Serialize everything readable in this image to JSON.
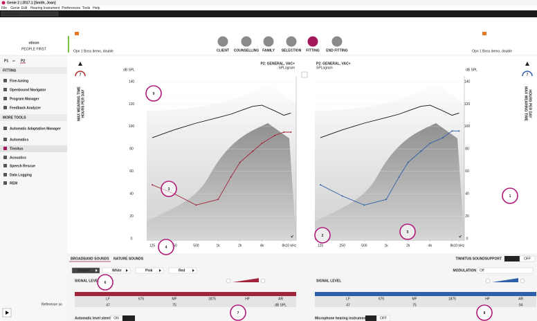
{
  "title_bar": "Genie 2 | 2017.1 [Smith, Joan]",
  "menu": [
    "File",
    "Genie",
    "Edit",
    "Hearing Instrument",
    "Preferences",
    "Tools",
    "Help"
  ],
  "toolbar": {
    "button": "Disconnect"
  },
  "logo": {
    "name": "oticon",
    "tagline": "PEOPLE FIRST"
  },
  "devices": {
    "left": "Opn 1 Boss demo, double",
    "right": "Opn 1 Boss demo, double"
  },
  "nav": {
    "items": [
      "CLIENT",
      "COUNSELLING",
      "FAMILY",
      "SELECTION",
      "FITTING",
      "END FITTING"
    ],
    "active_index": 4
  },
  "programs": [
    "P1",
    "P2"
  ],
  "sidebar": [
    {
      "title": "FITTING",
      "items": [
        {
          "label": "Fine-tuning"
        },
        {
          "label": "Openbound Navigator"
        },
        {
          "label": "Program Manager"
        },
        {
          "label": "Feedback Analyzer"
        }
      ]
    },
    {
      "title": "MORE TOOLS",
      "items": [
        {
          "label": "Automatic Adaptation Manager"
        },
        {
          "label": "Automatics"
        },
        {
          "label": "Tinnitus",
          "active": true
        },
        {
          "label": "Acoustics"
        },
        {
          "label": "Speech Rescue"
        },
        {
          "label": "Data Logging"
        },
        {
          "label": "REM"
        }
      ]
    }
  ],
  "gauges": {
    "left": 7,
    "right": 7,
    "label_1": "MAX WEARING TIME",
    "label_2": "HOURS PER DAY"
  },
  "charts": [
    {
      "program_label": "P2: GENERAL, VAC+",
      "subtitle": "SPLogram",
      "y_label": "dB SPL",
      "color": "#a0253a",
      "ylim": [
        0,
        140
      ],
      "yticks": [
        0,
        20,
        40,
        60,
        80,
        100,
        120,
        140
      ],
      "xticks": [
        {
          "value": 125,
          "label": "125"
        },
        {
          "value": 250,
          "label": "250"
        },
        {
          "value": 500,
          "label": "500"
        },
        {
          "value": 1000,
          "label": "1k"
        },
        {
          "value": 2000,
          "label": "2k"
        },
        {
          "value": 4000,
          "label": "4k"
        },
        {
          "value": 8000,
          "label": "8k"
        },
        {
          "value": 10000,
          "label": "10 kHz"
        }
      ],
      "x": [
        125,
        250,
        500,
        1000,
        1500,
        2000,
        3000,
        4000,
        6000,
        8000,
        10000
      ],
      "values": [
        48,
        40,
        30,
        35,
        55,
        68,
        78,
        85,
        92,
        95,
        95
      ],
      "max_output": [
        90,
        97,
        103,
        108,
        111,
        114,
        118,
        119,
        114,
        110,
        112
      ]
    },
    {
      "program_label": "P2: GENERAL, VAC+",
      "subtitle": "SPLogram",
      "y_label": "dB SPL",
      "color": "#2f5fa8",
      "ylim": [
        0,
        140
      ],
      "yticks": [
        0,
        20,
        40,
        60,
        80,
        100,
        120,
        140
      ],
      "xticks": [
        {
          "value": 125,
          "label": "125"
        },
        {
          "value": 250,
          "label": "250"
        },
        {
          "value": 500,
          "label": "500"
        },
        {
          "value": 1000,
          "label": "1k"
        },
        {
          "value": 2000,
          "label": "2k"
        },
        {
          "value": 4000,
          "label": "4k"
        },
        {
          "value": 8000,
          "label": "8k"
        },
        {
          "value": 10000,
          "label": "10 kHz"
        }
      ],
      "x": [
        125,
        250,
        500,
        1000,
        1500,
        2000,
        3000,
        4000,
        6000,
        8000,
        10000
      ],
      "values": [
        48,
        38,
        30,
        35,
        55,
        68,
        78,
        85,
        90,
        96,
        96
      ],
      "max_output": [
        90,
        97,
        103,
        108,
        111,
        114,
        118,
        119,
        114,
        110,
        112
      ]
    }
  ],
  "bottom": {
    "tabs": [
      "BROADBAND SOUNDS",
      "NATURE SOUNDS"
    ],
    "support": "TINNITUS SOUNDSUPPORT",
    "on": "ON",
    "off": "OFF",
    "buttons": [
      "Shaped",
      "White",
      "Pink",
      "Red"
    ],
    "signal_level": "SIGNAL LEVEL",
    "modulation": "MODULATION",
    "modulation_value": "Off",
    "bands": [
      "LF",
      675,
      "MF",
      1875,
      "HF",
      "AR"
    ],
    "left_values": [
      47,
      75,
      "dB SPL"
    ],
    "right_values": [
      47,
      75,
      94
    ],
    "auto_level": "Automatic level steering",
    "mic": "Microphone hearing instrument",
    "reference": "Reference so"
  },
  "callouts": [
    "1",
    "2",
    "3",
    "4",
    "5",
    "6",
    "7",
    "8",
    "9"
  ]
}
